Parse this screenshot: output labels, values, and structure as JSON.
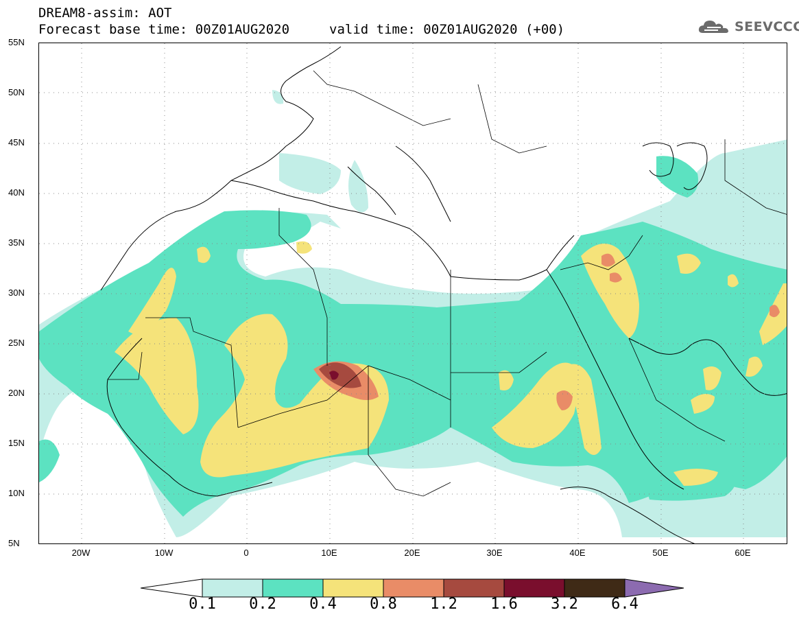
{
  "title": {
    "line1": "DREAM8-assim: AOT",
    "line2": "Forecast base time: 00Z01AUG2020",
    "valid": "valid time: 00Z01AUG2020 (+00)"
  },
  "logo": {
    "text": "SEEVCCC",
    "icon": "cloud-icon"
  },
  "axes": {
    "lat_labels": [
      "55N",
      "50N",
      "45N",
      "40N",
      "35N",
      "30N",
      "25N",
      "20N",
      "15N",
      "10N",
      "5N"
    ],
    "lon_labels": [
      "20W",
      "10W",
      "0",
      "10E",
      "20E",
      "30E",
      "40E",
      "50E",
      "60E"
    ]
  },
  "colorbar": {
    "labels": [
      "0.1",
      "0.2",
      "0.4",
      "0.8",
      "1.2",
      "1.6",
      "3.2",
      "6.4"
    ],
    "colors": [
      "#ffffff",
      "#c2eee7",
      "#5ce2c1",
      "#f5e37a",
      "#e98c67",
      "#a64a3f",
      "#7a0e2d",
      "#3f2a16",
      "#8c6bb0"
    ]
  },
  "fields": {
    "aot_colors": {
      "c1": "#c2eee7",
      "c2": "#5ce2c1",
      "c3": "#f5e37a",
      "c4": "#e98c67",
      "c5": "#a64a3f",
      "c6": "#7a0e2d"
    }
  }
}
